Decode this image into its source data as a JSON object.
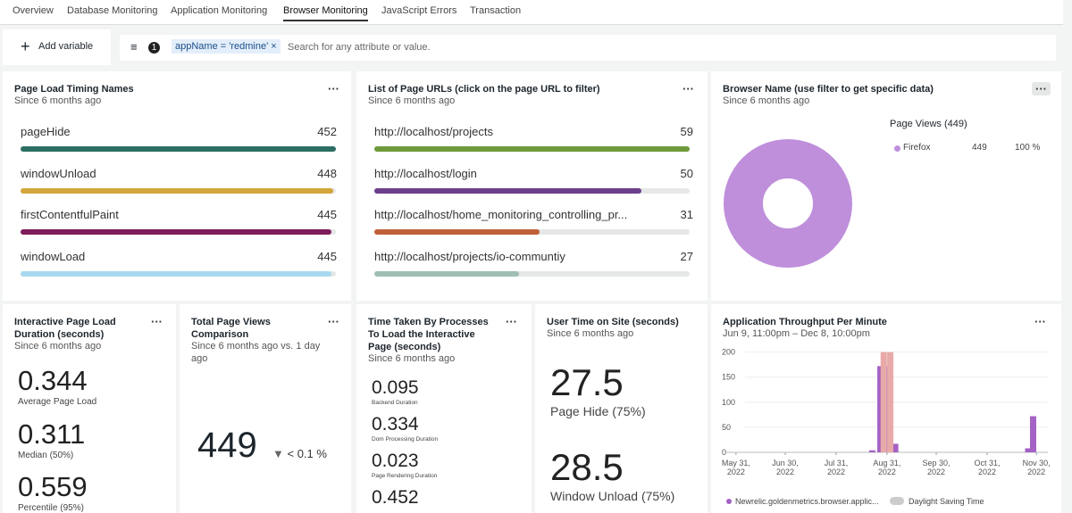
{
  "tabs": [
    "Overview",
    "Database Monitoring",
    "Application Monitoring",
    "Browser Monitoring",
    "JavaScript Errors",
    "Transaction"
  ],
  "add_variable": "Add variable",
  "filter": {
    "count": 1,
    "chip": "appName = 'redmine'",
    "placeholder": "Search for any attribute or value."
  },
  "widgets": {
    "page_load": {
      "title": "Page Load Timing Names",
      "subtitle": "Since 6 months ago",
      "rows": [
        {
          "label": "pageHide",
          "value": 452,
          "color": "#2c6e63"
        },
        {
          "label": "windowUnload",
          "value": 448,
          "color": "#d4a53b"
        },
        {
          "label": "firstContentfulPaint",
          "value": 445,
          "color": "#7f1c5a"
        },
        {
          "label": "windowLoad",
          "value": 445,
          "color": "#a9d8ee"
        }
      ]
    },
    "urls": {
      "title": "List of Page URLs (click on the page URL to filter)",
      "subtitle": "Since 6 months ago",
      "rows": [
        {
          "label": "http://localhost/projects",
          "value": 59,
          "color": "#6e9a3c"
        },
        {
          "label": "http://localhost/login",
          "value": 50,
          "color": "#6b3f8e"
        },
        {
          "label": "http://localhost/home_monitoring_controlling_pr...",
          "value": 31,
          "color": "#c0603a"
        },
        {
          "label": "http://localhost/projects/io-communtiy",
          "value": 27,
          "color": "#9fbfb4"
        }
      ]
    },
    "browser": {
      "title": "Browser Name (use filter to get specific data)",
      "subtitle": "Since 6 months ago",
      "legend_title": "Page Views (449)",
      "rows": [
        {
          "label": "Firefox",
          "value": 449,
          "percent": "100 %",
          "color": "#bf8fdb"
        }
      ]
    },
    "interactive": {
      "title": "Interactive Page Load Duration (seconds)",
      "subtitle": "Since 6 months ago",
      "stats": [
        {
          "value": 0.344,
          "label": "Average Page Load"
        },
        {
          "value": 0.311,
          "label": "Median (50%)"
        },
        {
          "value": 0.559,
          "label": "Percentile (95%)"
        }
      ]
    },
    "total_views": {
      "title": "Total Page Views Comparison",
      "subtitle": "Since 6 months ago vs. 1 day ago",
      "value": 449,
      "change": "< 0.1 %"
    },
    "processes": {
      "title": "Time Taken By Processes To Load the Interactive Page (seconds)",
      "subtitle": "Since 6 months ago",
      "stats": [
        {
          "value": 0.095,
          "label": "Backend Duration"
        },
        {
          "value": 0.334,
          "label": "Dom Processing Duration"
        },
        {
          "value": 0.023,
          "label": "Page Rendering Duration"
        },
        {
          "value": 0.452
        }
      ]
    },
    "user_time": {
      "title": "User Time on Site (seconds)",
      "subtitle": "Since 6 months ago",
      "stats": [
        {
          "value": 27.5,
          "label": "Page Hide (75%)"
        },
        {
          "value": 28.5,
          "label": "Window Unload (75%)"
        }
      ]
    },
    "throughput": {
      "title": "Application Throughput Per Minute",
      "subtitle": "Jun 9, 11:00pm – Dec 8, 10:00pm",
      "toggle": "Daylight Saving Time",
      "chart": {
        "type": "bar",
        "xlim": [
          "2022-05-24",
          "2022-12-07"
        ],
        "ylim": [
          0,
          210
        ],
        "yticks": [
          0,
          50,
          100,
          150,
          200
        ],
        "xticks": [
          {
            "value": "2022-05-31",
            "label": [
              "May 31,",
              "2022"
            ]
          },
          {
            "value": "2022-06-30",
            "label": [
              "Jun 30,",
              "2022"
            ]
          },
          {
            "value": "2022-07-31",
            "label": [
              "Jul 31,",
              "2022"
            ]
          },
          {
            "value": "2022-08-31",
            "label": [
              "Aug 31,",
              "2022"
            ]
          },
          {
            "value": "2022-09-30",
            "label": [
              "Sep 30,",
              "2022"
            ]
          },
          {
            "value": "2022-10-31",
            "label": [
              "Oct 31,",
              "2022"
            ]
          },
          {
            "value": "2022-11-30",
            "label": [
              "Nov 30,",
              "2022"
            ]
          }
        ],
        "series": [
          {
            "name": "Newrelic.goldenmetrics.browser.applic...",
            "color": "#a362c4",
            "x": [
              "2022-08-22",
              "2022-08-27",
              "2022-08-30",
              "2022-09-05",
              "2022-11-25",
              "2022-11-28"
            ],
            "values": [
              4,
              172,
              172,
              17,
              8,
              72
            ]
          },
          {
            "color": "#e8aaa9",
            "x": [
              "2022-08-29",
              "2022-09-02"
            ],
            "values": [
              200,
              200
            ]
          }
        ]
      }
    }
  }
}
